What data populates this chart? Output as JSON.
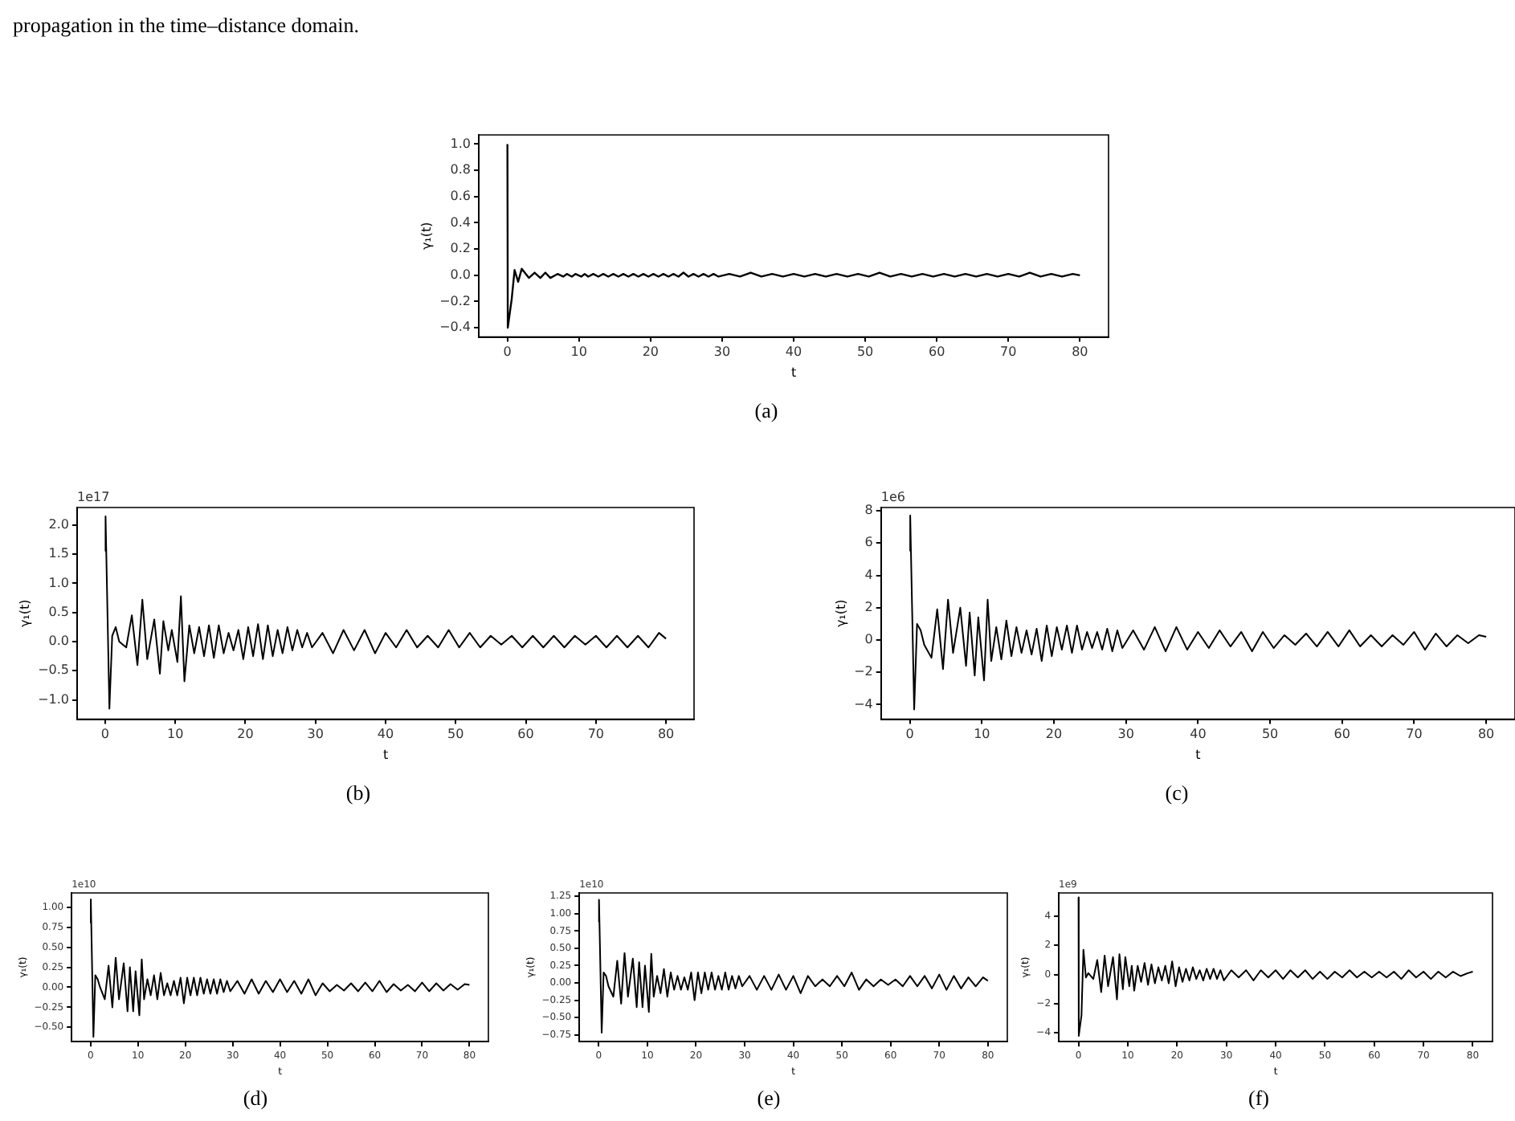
{
  "chart_data": [
    {
      "type": "line",
      "title": "(a)",
      "annotations": [
        "propagation in the time–distance domain."
      ],
      "xlabel": "t",
      "ylabel": "γ₁(t)",
      "x": [
        0,
        0.05,
        0.6,
        1,
        1.5,
        2,
        3,
        3.8,
        4.6,
        5.3,
        6,
        7,
        7.8,
        8.3,
        9,
        9.5,
        10.3,
        10.8,
        11.3,
        12,
        12.7,
        13.4,
        14.1,
        14.8,
        15.5,
        16.2,
        16.9,
        17.6,
        18.3,
        19,
        19.7,
        20.4,
        21.1,
        21.8,
        22.5,
        23.2,
        23.9,
        24.6,
        25.3,
        26,
        26.7,
        27.4,
        28.1,
        28.8,
        29.5,
        31,
        32.5,
        34,
        35.5,
        37,
        38.5,
        40,
        41.5,
        43,
        44.5,
        46,
        47.5,
        49,
        50.5,
        52,
        53.5,
        55,
        56.5,
        58,
        59.5,
        61,
        62.5,
        64,
        65.5,
        67,
        68.5,
        70,
        71.5,
        73,
        74.5,
        76,
        77.5,
        79,
        80
      ],
      "series": [
        {
          "color": "#000000",
          "values": [
            1.0,
            -0.4,
            -0.18,
            0.04,
            -0.05,
            0.05,
            -0.02,
            0.02,
            -0.02,
            0.02,
            -0.02,
            0.01,
            -0.01,
            0.01,
            -0.01,
            0.01,
            -0.01,
            0.01,
            -0.01,
            0.01,
            -0.01,
            0.01,
            -0.01,
            0.01,
            -0.01,
            0.01,
            -0.01,
            0.01,
            -0.01,
            0.01,
            -0.01,
            0.01,
            -0.01,
            0.01,
            -0.01,
            0.01,
            -0.01,
            0.02,
            -0.01,
            0.01,
            -0.01,
            0.01,
            -0.01,
            0.01,
            -0.01,
            0.01,
            -0.01,
            0.02,
            -0.01,
            0.01,
            -0.01,
            0.01,
            -0.01,
            0.01,
            -0.01,
            0.01,
            -0.01,
            0.01,
            -0.01,
            0.02,
            -0.01,
            0.01,
            -0.01,
            0.01,
            -0.01,
            0.01,
            -0.01,
            0.01,
            -0.01,
            0.01,
            -0.01,
            0.01,
            -0.01,
            0.02,
            -0.01,
            0.01,
            -0.01,
            0.01,
            0.0
          ]
        }
      ],
      "xlim": [
        -4,
        84
      ],
      "xticks": [
        0,
        10,
        20,
        30,
        40,
        50,
        60,
        70,
        80
      ],
      "ylim": [
        -0.47,
        1.07
      ],
      "yticks": [
        {
          "value": -0.4,
          "label": "−0.4"
        },
        {
          "value": -0.2,
          "label": "−0.2"
        },
        {
          "value": 0,
          "label": "0.0"
        },
        {
          "value": 0.2,
          "label": "0.2"
        },
        {
          "value": 0.4,
          "label": "0.4"
        },
        {
          "value": 0.6,
          "label": "0.6"
        },
        {
          "value": 0.8,
          "label": "0.8"
        },
        {
          "value": 1,
          "label": "1.0"
        }
      ]
    },
    {
      "type": "line",
      "title": "(b)",
      "annotations": [
        "1e17"
      ],
      "xlabel": "t",
      "ylabel": "γ₁(t)",
      "x": [
        0,
        0.05,
        0.6,
        1,
        1.5,
        2,
        3,
        3.8,
        4.6,
        5.3,
        6,
        7,
        7.8,
        8.3,
        9,
        9.5,
        10.3,
        10.8,
        11.3,
        12,
        12.7,
        13.4,
        14.1,
        14.8,
        15.5,
        16.2,
        16.9,
        17.6,
        18.3,
        19,
        19.7,
        20.4,
        21.1,
        21.8,
        22.5,
        23.2,
        23.9,
        24.6,
        25.3,
        26,
        26.7,
        27.4,
        28.1,
        28.8,
        29.5,
        31,
        32.5,
        34,
        35.5,
        37,
        38.5,
        40,
        41.5,
        43,
        44.5,
        46,
        47.5,
        49,
        50.5,
        52,
        53.5,
        55,
        56.5,
        58,
        59.5,
        61,
        62.5,
        64,
        65.5,
        67,
        68.5,
        70,
        71.5,
        73,
        74.5,
        76,
        77.5,
        79,
        80
      ],
      "series": [
        {
          "color": "#000000",
          "values": [
            1.55,
            2.15,
            -1.15,
            0.1,
            0.25,
            0.0,
            -0.1,
            0.45,
            -0.4,
            0.72,
            -0.3,
            0.38,
            -0.55,
            0.35,
            -0.15,
            0.2,
            -0.35,
            0.78,
            -0.68,
            0.28,
            -0.2,
            0.25,
            -0.25,
            0.28,
            -0.28,
            0.28,
            -0.2,
            0.15,
            -0.15,
            0.2,
            -0.3,
            0.25,
            -0.25,
            0.3,
            -0.3,
            0.28,
            -0.25,
            0.2,
            -0.2,
            0.25,
            -0.15,
            0.2,
            -0.1,
            0.15,
            -0.1,
            0.15,
            -0.2,
            0.2,
            -0.15,
            0.2,
            -0.2,
            0.15,
            -0.1,
            0.2,
            -0.1,
            0.1,
            -0.1,
            0.2,
            -0.1,
            0.15,
            -0.1,
            0.1,
            -0.05,
            0.1,
            -0.1,
            0.1,
            -0.1,
            0.1,
            -0.1,
            0.1,
            -0.05,
            0.1,
            -0.1,
            0.1,
            -0.1,
            0.1,
            -0.1,
            0.15,
            0.05
          ]
        }
      ],
      "xlim": [
        -4,
        84
      ],
      "xticks": [
        0,
        10,
        20,
        30,
        40,
        50,
        60,
        70,
        80
      ],
      "ylim": [
        -1.33,
        2.3
      ],
      "yticks": [
        {
          "value": -1,
          "label": "−1.0"
        },
        {
          "value": -0.5,
          "label": "−0.5"
        },
        {
          "value": 0,
          "label": "0.0"
        },
        {
          "value": 0.5,
          "label": "0.5"
        },
        {
          "value": 1,
          "label": "1.0"
        },
        {
          "value": 1.5,
          "label": "1.5"
        },
        {
          "value": 2,
          "label": "2.0"
        }
      ]
    },
    {
      "type": "line",
      "title": "(c)",
      "annotations": [
        "1e6"
      ],
      "xlabel": "t",
      "ylabel": "γ₁(t)",
      "x": [
        0,
        0.05,
        0.6,
        1,
        1.5,
        2,
        3,
        3.8,
        4.6,
        5.3,
        6,
        7,
        7.8,
        8.3,
        9,
        9.5,
        10.3,
        10.8,
        11.3,
        12,
        12.7,
        13.4,
        14.1,
        14.8,
        15.5,
        16.2,
        16.9,
        17.6,
        18.3,
        19,
        19.7,
        20.4,
        21.1,
        21.8,
        22.5,
        23.2,
        23.9,
        24.6,
        25.3,
        26,
        26.7,
        27.4,
        28.1,
        28.8,
        29.5,
        31,
        32.5,
        34,
        35.5,
        37,
        38.5,
        40,
        41.5,
        43,
        44.5,
        46,
        47.5,
        49,
        50.5,
        52,
        53.5,
        55,
        56.5,
        58,
        59.5,
        61,
        62.5,
        64,
        65.5,
        67,
        68.5,
        70,
        71.5,
        73,
        74.5,
        76,
        77.5,
        79,
        80
      ],
      "series": [
        {
          "color": "#000000",
          "values": [
            5.5,
            7.7,
            -4.3,
            1.0,
            0.6,
            -0.3,
            -1.1,
            1.9,
            -1.8,
            2.5,
            -0.8,
            2.0,
            -1.6,
            1.7,
            -2.2,
            1.4,
            -2.5,
            2.5,
            -1.3,
            0.8,
            -1.2,
            1.2,
            -1.0,
            0.8,
            -0.8,
            0.6,
            -0.9,
            0.7,
            -1.3,
            0.9,
            -1.0,
            0.8,
            -0.6,
            0.9,
            -0.8,
            0.9,
            -0.6,
            0.5,
            -0.5,
            0.5,
            -0.6,
            0.7,
            -0.7,
            0.6,
            -0.5,
            0.6,
            -0.6,
            0.8,
            -0.7,
            0.8,
            -0.6,
            0.5,
            -0.5,
            0.6,
            -0.4,
            0.5,
            -0.7,
            0.5,
            -0.5,
            0.3,
            -0.3,
            0.4,
            -0.4,
            0.5,
            -0.4,
            0.6,
            -0.4,
            0.3,
            -0.4,
            0.3,
            -0.3,
            0.5,
            -0.6,
            0.4,
            -0.4,
            0.3,
            -0.2,
            0.3,
            0.2
          ]
        }
      ],
      "xlim": [
        -4,
        84
      ],
      "xticks": [
        0,
        10,
        20,
        30,
        40,
        50,
        60,
        70,
        80
      ],
      "ylim": [
        -4.9,
        8.2
      ],
      "yticks": [
        {
          "value": -4,
          "label": "−4"
        },
        {
          "value": -2,
          "label": "−2"
        },
        0,
        2,
        4,
        6,
        8
      ]
    },
    {
      "type": "line",
      "title": "(d)",
      "annotations": [
        "1e10"
      ],
      "xlabel": "t",
      "ylabel": "γ₁(t)",
      "x": [
        0,
        0.05,
        0.6,
        1,
        1.5,
        2,
        3,
        3.8,
        4.6,
        5.3,
        6,
        7,
        7.8,
        8.3,
        9,
        9.5,
        10.3,
        10.8,
        11.3,
        12,
        12.7,
        13.4,
        14.1,
        14.8,
        15.5,
        16.2,
        16.9,
        17.6,
        18.3,
        19,
        19.7,
        20.4,
        21.1,
        21.8,
        22.5,
        23.2,
        23.9,
        24.6,
        25.3,
        26,
        26.7,
        27.4,
        28.1,
        28.8,
        29.5,
        31,
        32.5,
        34,
        35.5,
        37,
        38.5,
        40,
        41.5,
        43,
        44.5,
        46,
        47.5,
        49,
        50.5,
        52,
        53.5,
        55,
        56.5,
        58,
        59.5,
        61,
        62.5,
        64,
        65.5,
        67,
        68.5,
        70,
        71.5,
        73,
        74.5,
        76,
        77.5,
        79,
        80
      ],
      "series": [
        {
          "color": "#000000",
          "values": [
            0.8,
            1.1,
            -0.62,
            0.15,
            0.1,
            0.0,
            -0.15,
            0.27,
            -0.25,
            0.37,
            -0.15,
            0.3,
            -0.3,
            0.25,
            -0.3,
            0.2,
            -0.35,
            0.35,
            -0.15,
            0.1,
            -0.1,
            0.15,
            -0.15,
            0.18,
            -0.1,
            0.05,
            -0.1,
            0.08,
            -0.1,
            0.12,
            -0.2,
            0.12,
            -0.1,
            0.12,
            -0.1,
            0.12,
            -0.08,
            0.1,
            -0.08,
            0.1,
            -0.08,
            0.1,
            -0.06,
            0.08,
            -0.05,
            0.08,
            -0.08,
            0.1,
            -0.08,
            0.08,
            -0.06,
            0.1,
            -0.06,
            0.08,
            -0.08,
            0.1,
            -0.1,
            0.05,
            -0.05,
            0.03,
            -0.04,
            0.05,
            -0.05,
            0.06,
            -0.05,
            0.08,
            -0.06,
            0.04,
            -0.04,
            0.03,
            -0.05,
            0.06,
            -0.05,
            0.05,
            -0.04,
            0.04,
            -0.03,
            0.04,
            0.03
          ]
        }
      ],
      "xlim": [
        -4,
        84
      ],
      "xticks": [
        0,
        10,
        20,
        30,
        40,
        50,
        60,
        70,
        80
      ],
      "ylim": [
        -0.68,
        1.18
      ],
      "yticks": [
        {
          "value": -0.5,
          "label": "−0.50"
        },
        {
          "value": -0.25,
          "label": "−0.25"
        },
        {
          "value": 0,
          "label": "0.00"
        },
        {
          "value": 0.25,
          "label": "0.25"
        },
        {
          "value": 0.5,
          "label": "0.50"
        },
        {
          "value": 0.75,
          "label": "0.75"
        },
        {
          "value": 1,
          "label": "1.00"
        }
      ]
    },
    {
      "type": "line",
      "title": "(e)",
      "annotations": [
        "1e10"
      ],
      "xlabel": "t",
      "ylabel": "γ₁(t)",
      "x": [
        0,
        0.05,
        0.6,
        1,
        1.5,
        2,
        3,
        3.8,
        4.6,
        5.3,
        6,
        7,
        7.8,
        8.3,
        9,
        9.5,
        10.3,
        10.8,
        11.3,
        12,
        12.7,
        13.4,
        14.1,
        14.8,
        15.5,
        16.2,
        16.9,
        17.6,
        18.3,
        19,
        19.7,
        20.4,
        21.1,
        21.8,
        22.5,
        23.2,
        23.9,
        24.6,
        25.3,
        26,
        26.7,
        27.4,
        28.1,
        28.8,
        29.5,
        31,
        32.5,
        34,
        35.5,
        37,
        38.5,
        40,
        41.5,
        43,
        44.5,
        46,
        47.5,
        49,
        50.5,
        52,
        53.5,
        55,
        56.5,
        58,
        59.5,
        61,
        62.5,
        64,
        65.5,
        67,
        68.5,
        70,
        71.5,
        73,
        74.5,
        76,
        77.5,
        79,
        80
      ],
      "series": [
        {
          "color": "#000000",
          "values": [
            0.88,
            1.2,
            -0.72,
            0.15,
            0.1,
            -0.05,
            -0.2,
            0.32,
            -0.3,
            0.43,
            -0.2,
            0.35,
            -0.35,
            0.3,
            -0.35,
            0.25,
            -0.42,
            0.42,
            -0.2,
            0.1,
            -0.15,
            0.2,
            -0.2,
            0.15,
            -0.1,
            0.1,
            -0.1,
            0.08,
            -0.1,
            0.15,
            -0.25,
            0.15,
            -0.15,
            0.15,
            -0.1,
            0.15,
            -0.1,
            0.1,
            -0.1,
            0.15,
            -0.1,
            0.1,
            -0.08,
            0.1,
            -0.05,
            0.1,
            -0.1,
            0.1,
            -0.1,
            0.12,
            -0.1,
            0.1,
            -0.15,
            0.1,
            -0.05,
            0.05,
            -0.05,
            0.1,
            -0.05,
            0.15,
            -0.1,
            0.05,
            -0.05,
            0.05,
            -0.03,
            0.05,
            -0.05,
            0.1,
            -0.05,
            0.1,
            -0.08,
            0.12,
            -0.1,
            0.1,
            -0.08,
            0.08,
            -0.05,
            0.08,
            0.03
          ]
        }
      ],
      "xlim": [
        -4,
        84
      ],
      "xticks": [
        0,
        10,
        20,
        30,
        40,
        50,
        60,
        70,
        80
      ],
      "ylim": [
        -0.85,
        1.3
      ],
      "yticks": [
        {
          "value": -0.75,
          "label": "−0.75"
        },
        {
          "value": -0.5,
          "label": "−0.50"
        },
        {
          "value": -0.25,
          "label": "−0.25"
        },
        {
          "value": 0,
          "label": "0.00"
        },
        {
          "value": 0.25,
          "label": "0.25"
        },
        {
          "value": 0.5,
          "label": "0.50"
        },
        {
          "value": 0.75,
          "label": "0.75"
        },
        {
          "value": 1,
          "label": "1.00"
        },
        {
          "value": 1.25,
          "label": "1.25"
        }
      ]
    },
    {
      "type": "line",
      "title": "(f)",
      "annotations": [
        "1e9"
      ],
      "xlabel": "t",
      "ylabel": "γ₁(t)",
      "x": [
        0,
        0.05,
        0.6,
        1,
        1.5,
        2,
        3,
        3.8,
        4.6,
        5.3,
        6,
        7,
        7.8,
        8.3,
        9,
        9.5,
        10.3,
        10.8,
        11.3,
        12,
        12.7,
        13.4,
        14.1,
        14.8,
        15.5,
        16.2,
        16.9,
        17.6,
        18.3,
        19,
        19.7,
        20.4,
        21.1,
        21.8,
        22.5,
        23.2,
        23.9,
        24.6,
        25.3,
        26,
        26.7,
        27.4,
        28.1,
        28.8,
        29.5,
        31,
        32.5,
        34,
        35.5,
        37,
        38.5,
        40,
        41.5,
        43,
        44.5,
        46,
        47.5,
        49,
        50.5,
        52,
        53.5,
        55,
        56.5,
        58,
        59.5,
        61,
        62.5,
        64,
        65.5,
        67,
        68.5,
        70,
        71.5,
        73,
        74.5,
        76,
        77.5,
        79,
        80
      ],
      "series": [
        {
          "color": "#000000",
          "values": [
            5.3,
            -4.2,
            -2.8,
            1.7,
            -0.2,
            0.1,
            -0.3,
            1.0,
            -1.2,
            1.3,
            -0.8,
            1.2,
            -1.7,
            1.4,
            -1.0,
            1.2,
            -0.8,
            0.6,
            -1.1,
            0.6,
            -0.5,
            0.8,
            -0.7,
            0.7,
            -0.6,
            0.5,
            -0.4,
            0.6,
            -0.6,
            0.9,
            -0.8,
            0.5,
            -0.5,
            0.4,
            -0.4,
            0.5,
            -0.3,
            0.3,
            -0.4,
            0.4,
            -0.3,
            0.4,
            -0.3,
            0.3,
            -0.4,
            0.3,
            -0.2,
            0.3,
            -0.4,
            0.3,
            -0.2,
            0.3,
            -0.3,
            0.3,
            -0.2,
            0.3,
            -0.3,
            0.2,
            -0.3,
            0.2,
            -0.2,
            0.3,
            -0.2,
            0.2,
            -0.2,
            0.2,
            -0.2,
            0.2,
            -0.3,
            0.3,
            -0.2,
            0.2,
            -0.3,
            0.2,
            -0.2,
            0.2,
            -0.1,
            0.1,
            0.2
          ]
        }
      ],
      "xlim": [
        -4,
        84
      ],
      "xticks": [
        0,
        10,
        20,
        30,
        40,
        50,
        60,
        70,
        80
      ],
      "ylim": [
        -4.6,
        5.6
      ],
      "yticks": [
        {
          "value": -4,
          "label": "−4"
        },
        {
          "value": -2,
          "label": "−2"
        },
        0,
        2,
        4
      ]
    }
  ]
}
